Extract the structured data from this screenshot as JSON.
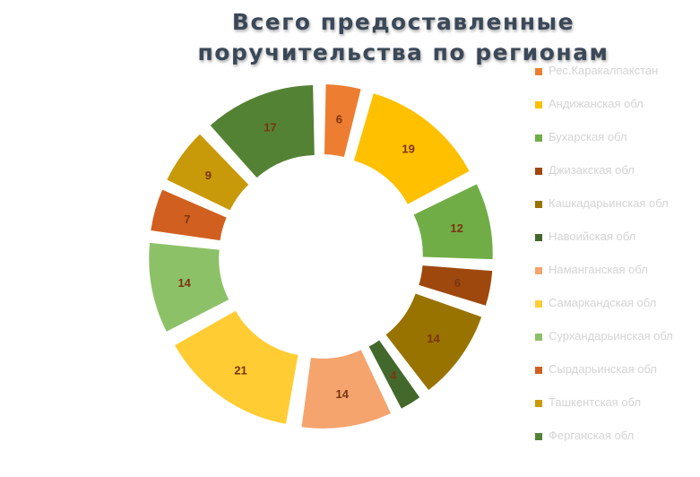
{
  "chart_data": {
    "type": "pie",
    "variant": "exploded-donut",
    "title": "Всего предоставленные поручительства по регионам",
    "legend_position": "right",
    "categories": [
      "Рес.Каракалпакстан",
      "Андижанская обл",
      "Бухарская обл",
      "Джизакская обл",
      "Кашкадарьинская обл",
      "Навоийская обл",
      "Наманганская обл",
      "Самаркандская обл",
      "Сурхандарьинская обл",
      "Сырдарьинская обл",
      "Ташкентская обл",
      "Ферганская обл"
    ],
    "values": [
      6,
      19,
      12,
      6,
      14,
      4,
      14,
      21,
      14,
      7,
      9,
      17
    ],
    "colors": [
      "#ed7d31",
      "#ffc000",
      "#70ad47",
      "#9e480e",
      "#997300",
      "#43682b",
      "#f4a46c",
      "#ffcd33",
      "#8cc168",
      "#d16020",
      "#c89a0a",
      "#548235"
    ],
    "label_color": "#7b3410",
    "legend_text_color": "#d4d4d4"
  }
}
